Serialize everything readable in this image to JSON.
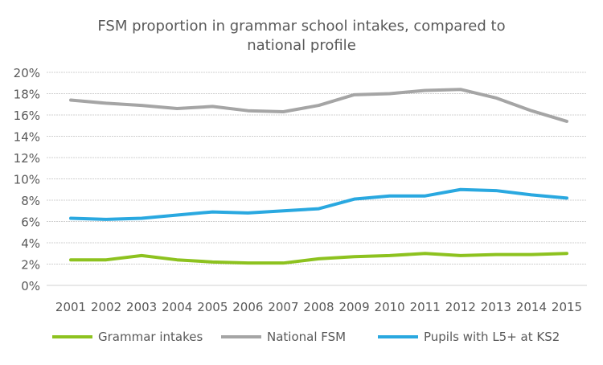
{
  "chart_data": {
    "type": "line",
    "title_lines": [
      "FSM proportion in grammar school intakes, compared to",
      "national profile"
    ],
    "x": [
      "2001",
      "2002",
      "2003",
      "2004",
      "2005",
      "2006",
      "2007",
      "2008",
      "2009",
      "2010",
      "2011",
      "2012",
      "2013",
      "2014",
      "2015"
    ],
    "ylim": [
      0,
      20
    ],
    "yticks": [
      "0%",
      "2%",
      "4%",
      "6%",
      "8%",
      "10%",
      "12%",
      "14%",
      "16%",
      "18%",
      "20%"
    ],
    "grid": true,
    "legend_position": "bottom",
    "series": [
      {
        "name": "Grammar intakes",
        "color": "#8DC21F",
        "values": [
          2.4,
          2.4,
          2.8,
          2.4,
          2.2,
          2.1,
          2.1,
          2.5,
          2.7,
          2.8,
          3.0,
          2.8,
          2.9,
          2.9,
          3.0
        ]
      },
      {
        "name": "National FSM",
        "color": "#A5A5A5",
        "values": [
          17.4,
          17.1,
          16.9,
          16.6,
          16.8,
          16.4,
          16.3,
          16.9,
          17.9,
          18.0,
          18.3,
          18.4,
          17.6,
          16.4,
          15.4
        ]
      },
      {
        "name": "Pupils with L5+ at KS2",
        "color": "#29A8E0",
        "values": [
          6.3,
          6.2,
          6.3,
          6.6,
          6.9,
          6.8,
          7.0,
          7.2,
          8.1,
          8.4,
          8.4,
          9.0,
          8.9,
          8.5,
          8.2
        ]
      }
    ]
  }
}
